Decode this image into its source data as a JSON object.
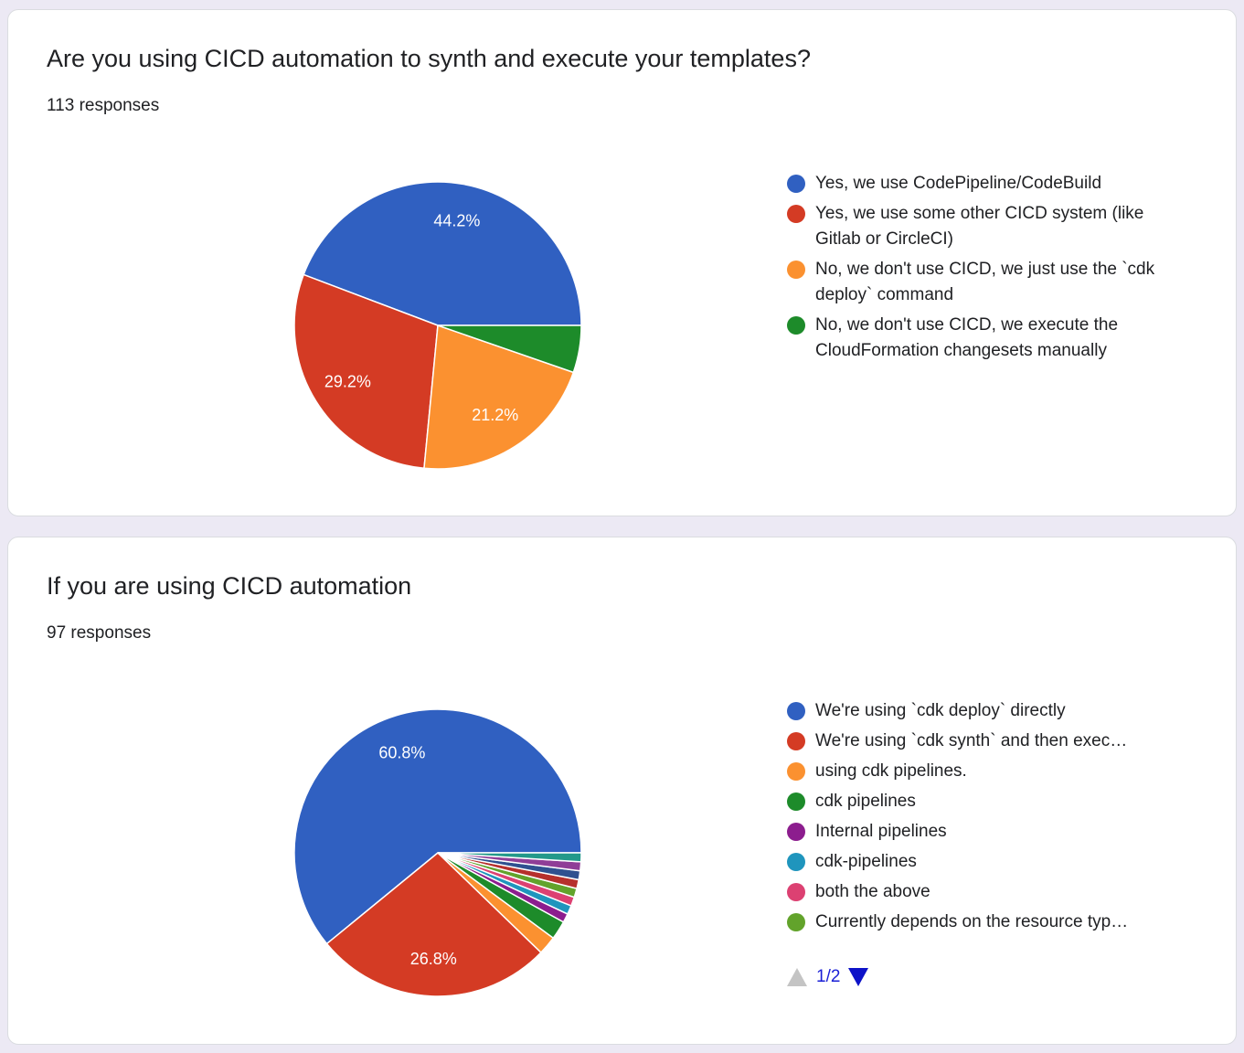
{
  "cards": [
    {
      "title": "Are you using CICD automation to synth and execute your templates?",
      "responses": "113 responses",
      "chart_data": {
        "type": "pie",
        "title": "Are you using CICD automation to synth and execute your templates?",
        "categories": [
          "Yes, we use CodePipeline/CodeBuild",
          "Yes, we use some other CICD system (like Gitlab or CircleCI)",
          "No, we don't use CICD, we just use the `cdk deploy` command",
          "No, we don't use CICD, we execute the CloudFormation changesets manually"
        ],
        "values": [
          44.2,
          29.2,
          21.2,
          5.3
        ],
        "labels": [
          "44.2%",
          "29.2%",
          "21.2%",
          ""
        ],
        "colors": [
          "#3060c1",
          "#d43b24",
          "#fb9130",
          "#1d8b2a"
        ]
      }
    },
    {
      "title": "If you are using CICD automation",
      "responses": "97 responses",
      "chart_data": {
        "type": "pie",
        "title": "If you are using CICD automation",
        "categories": [
          "We're using `cdk deploy` directly",
          "We're using `cdk synth` and then exec…",
          "using cdk pipelines.",
          "cdk pipelines",
          "Internal pipelines",
          "cdk-pipelines",
          "both the above",
          "Currently depends on the resource typ…"
        ],
        "values": [
          60.8,
          26.8,
          2.1,
          2.1,
          1.0,
          1.0,
          1.0,
          1.0,
          1.0,
          1.0,
          1.0,
          1.0
        ],
        "labels": [
          "60.8%",
          "26.8%",
          "",
          "",
          "",
          "",
          "",
          "",
          "",
          "",
          "",
          ""
        ],
        "colors": [
          "#3060c1",
          "#d43b24",
          "#fb9130",
          "#1d8b2a",
          "#8c1d8e",
          "#1f95bd",
          "#dc4172",
          "#62a32b",
          "#b6302c",
          "#2f5190",
          "#8f3e97",
          "#23998a"
        ],
        "legend_page": "1/2"
      }
    }
  ]
}
